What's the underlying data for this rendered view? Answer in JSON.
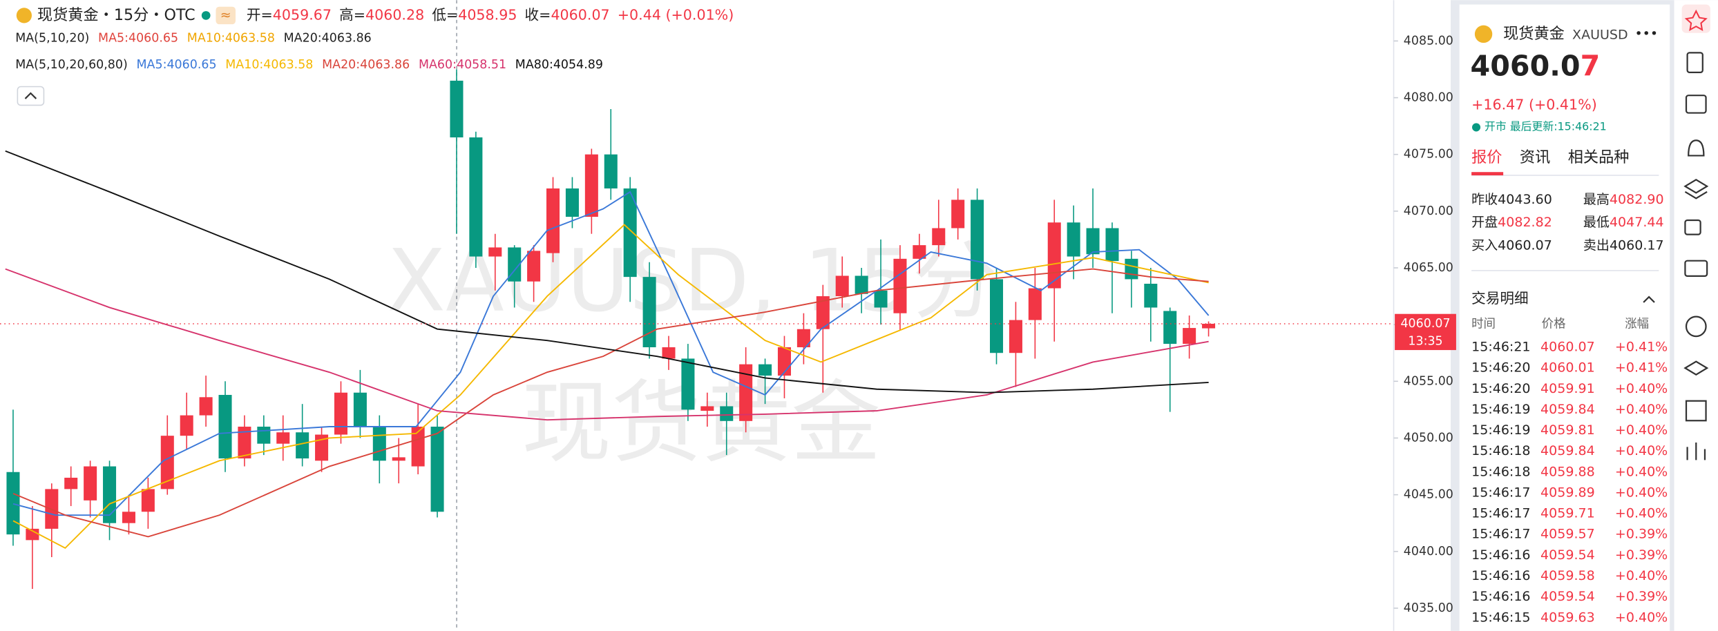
{
  "header": {
    "symbol": "现货黄金・15分・OTC",
    "ohlc": [
      {
        "label": "开=",
        "value": "4059.67"
      },
      {
        "label": "高=",
        "value": "4060.28"
      },
      {
        "label": "低=",
        "value": "4058.95"
      },
      {
        "label": "收=",
        "value": "4060.07"
      }
    ],
    "change": "+0.44 (+0.01%)",
    "ma_row": {
      "title": "MA(5,10,20)",
      "items": [
        {
          "text": "MA5:4060.65",
          "color": "#e0443d"
        },
        {
          "text": "MA10:4063.58",
          "color": "#f0a500"
        },
        {
          "text": "MA20:4063.86",
          "color": "#222222"
        }
      ]
    },
    "ma_row2_title": "MA(5,10,20,60,80)"
  },
  "chart_data": {
    "type": "candlestick",
    "up_color": "#f23645",
    "down_color": "#089981",
    "xlim": [
      -0.68,
      71.6
    ],
    "ylim": [
      4033,
      4088.6
    ],
    "yticks": [
      {
        "value": 4035,
        "label": "4035.00"
      },
      {
        "value": 4040,
        "label": "4040.00"
      },
      {
        "value": 4045,
        "label": "4045.00"
      },
      {
        "value": 4050,
        "label": "4050.00"
      },
      {
        "value": 4055,
        "label": "4055.00"
      },
      {
        "value": 4060,
        "label": "4060.00"
      },
      {
        "value": 4065,
        "label": "4065.00"
      },
      {
        "value": 4070,
        "label": "4070.00"
      },
      {
        "value": 4075,
        "label": "4075.00"
      },
      {
        "value": 4080,
        "label": "4080.00"
      },
      {
        "value": 4085,
        "label": "4085.00"
      }
    ],
    "open": [
      4047,
      4041,
      4042,
      4045.5,
      4044.5,
      4047.5,
      4042.5,
      4043.5,
      4045.5,
      4050.2,
      4052,
      4053.8,
      4048.2,
      4051,
      4049.5,
      4050.5,
      4048,
      4050.3,
      4054,
      4051,
      4048,
      4047.5,
      4051,
      4081.5,
      4076.5,
      4066,
      4066.8,
      4063.8,
      4066.3,
      4072,
      4069.5,
      4075,
      4072,
      4064.2,
      4057,
      4057,
      4052.4,
      4052.8,
      4051.5,
      4056.5,
      4055.5,
      4058,
      4059.6,
      4062.5,
      4064.3,
      4063,
      4061,
      4065.8,
      4067,
      4068.5,
      4071,
      4064,
      4057.5,
      4060.4,
      4063.2,
      4069,
      4068.5,
      4068.5,
      4065.8,
      4063.6,
      4061.2,
      4058.3,
      4059.67
    ],
    "high": [
      4052.5,
      4044,
      4046,
      4047.5,
      4048,
      4048,
      4045,
      4046.5,
      4052,
      4054,
      4055.5,
      4055,
      4052,
      4052,
      4052,
      4053,
      4051,
      4055,
      4056,
      4052,
      4050,
      4053,
      4052,
      4082.5,
      4077,
      4068,
      4067,
      4067,
      4073,
      4073,
      4075.5,
      4079,
      4073,
      4065.5,
      4059,
      4058.3,
      4054,
      4054,
      4058,
      4057,
      4059,
      4061,
      4063.5,
      4066,
      4065,
      4067.5,
      4067,
      4068,
      4071,
      4072,
      4072,
      4065,
      4062,
      4065,
      4071,
      4070.5,
      4072,
      4069,
      4066.5,
      4065,
      4061.5,
      4060.8,
      4060.28
    ],
    "low": [
      4040.5,
      4036.7,
      4039.5,
      4044,
      4043,
      4041,
      4041.5,
      4042,
      4045,
      4049,
      4051,
      4047,
      4047.5,
      4048.5,
      4048,
      4047.5,
      4047,
      4049.5,
      4050,
      4046,
      4046,
      4046.8,
      4043,
      4068,
      4065,
      4063,
      4061.5,
      4062,
      4065.5,
      4068.5,
      4068,
      4071,
      4062,
      4057,
      4056,
      4051.5,
      4051,
      4048.5,
      4050.5,
      4053,
      4053.5,
      4056.5,
      4054,
      4061.5,
      4061,
      4060,
      4059.5,
      4064.5,
      4066,
      4067.5,
      4063,
      4056.5,
      4054.5,
      4057,
      4058.5,
      4064,
      4065,
      4061,
      4061.5,
      4058.5,
      4052.3,
      4057,
      4058.95
    ],
    "close": [
      4041.5,
      4042,
      4045.5,
      4046.5,
      4047.5,
      4042.5,
      4043.5,
      4045.5,
      4050.2,
      4052,
      4053.6,
      4048.2,
      4051,
      4049.5,
      4050.5,
      4048.2,
      4050.3,
      4054,
      4051,
      4048,
      4048.3,
      4051,
      4043.5,
      4076.5,
      4066,
      4066.8,
      4063.8,
      4066.5,
      4072,
      4069.5,
      4075,
      4072,
      4064.2,
      4058,
      4058,
      4052.5,
      4052.8,
      4051.5,
      4056.5,
      4055.5,
      4058,
      4059.6,
      4062.5,
      4064.3,
      4062.7,
      4061.5,
      4065.8,
      4067,
      4068.5,
      4071,
      4064,
      4057.5,
      4060.4,
      4063.2,
      4069,
      4066,
      4066.2,
      4065.6,
      4064,
      4061.5,
      4058.3,
      4059.7,
      4060.07
    ],
    "series": [
      {
        "name": "MA5:4060.65",
        "color": "#3a78d8",
        "x": [
          0,
          2.2,
          5,
          7.8,
          10.7,
          16.4,
          20.9,
          23.2,
          24.9,
          27.7,
          30.6,
          32,
          34,
          36.3,
          39,
          41.9,
          44.8,
          47.6,
          50.5,
          53.3,
          56,
          58.4,
          60.4,
          62
        ],
        "values": [
          4044.2,
          4043.2,
          4043.2,
          4048,
          4050.4,
          4051,
          4051,
          4055.8,
          4062.5,
          4068.3,
          4070.2,
          4071.7,
          4064.4,
          4055.8,
          4053.8,
          4059.6,
          4063,
          4066.4,
          4065.4,
          4063,
          4066.4,
          4066.6,
          4064,
          4060.8
        ]
      },
      {
        "name": "MA10:4063.58",
        "color": "#f5b800",
        "x": [
          0,
          2.7,
          5,
          10.7,
          16.4,
          20.9,
          23.2,
          27.7,
          31.7,
          34.5,
          39,
          41.9,
          47.6,
          50.5,
          56,
          62
        ],
        "values": [
          4042.7,
          4040.3,
          4044.2,
          4048,
          4050,
          4050.4,
          4053.8,
          4062.5,
          4068.8,
          4064.4,
          4058.6,
          4056.7,
          4060.6,
          4064.4,
          4065.9,
          4063.7
        ]
      },
      {
        "name": "MA20:4063.86",
        "color": "#d9443a",
        "x": [
          0,
          2.7,
          7,
          10.7,
          16.4,
          22,
          24.9,
          27.7,
          30.6,
          33.4,
          39,
          44.8,
          50.5,
          56,
          59,
          62
        ],
        "values": [
          4045.1,
          4043.2,
          4041.3,
          4043.2,
          4047.5,
          4050.4,
          4053.8,
          4055.8,
          4057.2,
          4059.6,
          4061.1,
          4063,
          4064,
          4064.9,
          4064.2,
          4063.8
        ]
      },
      {
        "name": "MA60:4058.51",
        "color": "#d6336c",
        "x": [
          -0.4,
          5,
          10.7,
          16.4,
          22,
          27.7,
          33.4,
          39,
          44.8,
          50.5,
          56,
          62
        ],
        "values": [
          4064.9,
          4061.5,
          4058.6,
          4055.8,
          4052.4,
          4051.6,
          4051.9,
          4052.1,
          4052.4,
          4053.8,
          4056.7,
          4058.5
        ]
      },
      {
        "name": "MA80:4054.89",
        "color": "#111111",
        "x": [
          -0.4,
          5,
          10.7,
          16.4,
          22,
          27.7,
          33.4,
          39,
          44.8,
          50.5,
          56,
          62
        ],
        "values": [
          4075.3,
          4071.7,
          4067.8,
          4064,
          4059.6,
          4058.6,
          4057.2,
          4055.3,
          4054.3,
          4054,
          4054.3,
          4054.9
        ]
      }
    ],
    "last_price": {
      "value": 4060.07,
      "label": "4060.07"
    },
    "last_time": "13:35",
    "watermark": [
      "XAUUSD, 15分",
      "现货黄金"
    ]
  },
  "sidebar": {
    "name": "现货黄金",
    "code": "XAUUSD",
    "price_main": "4060.0",
    "price_last": "7",
    "change": "+16.47 (+0.41%)",
    "status": "● 开市 最后更新:15:46:21",
    "tabs": [
      "报价",
      "资讯",
      "相关品种"
    ],
    "stats": [
      [
        {
          "label": "昨收",
          "value": "4043.60",
          "color": "#222222"
        },
        {
          "label": "最高",
          "value": "4082.90",
          "color": "#f23645"
        }
      ],
      [
        {
          "label": "开盘",
          "value": "4082.82",
          "color": "#f23645"
        },
        {
          "label": "最低",
          "value": "4047.44",
          "color": "#f23645"
        }
      ],
      [
        {
          "label": "买入",
          "value": "4060.07",
          "color": "#222222"
        },
        {
          "label": "卖出",
          "value": "4060.17",
          "color": "#222222"
        }
      ]
    ],
    "trades_title": "交易明细",
    "trades_header": [
      "时间",
      "价格",
      "涨幅"
    ],
    "trades": [
      [
        "15:46:21",
        "4060.07",
        "+0.41%"
      ],
      [
        "15:46:20",
        "4060.01",
        "+0.41%"
      ],
      [
        "15:46:20",
        "4059.91",
        "+0.40%"
      ],
      [
        "15:46:19",
        "4059.84",
        "+0.40%"
      ],
      [
        "15:46:19",
        "4059.81",
        "+0.40%"
      ],
      [
        "15:46:18",
        "4059.84",
        "+0.40%"
      ],
      [
        "15:46:18",
        "4059.88",
        "+0.40%"
      ],
      [
        "15:46:17",
        "4059.89",
        "+0.40%"
      ],
      [
        "15:46:17",
        "4059.71",
        "+0.40%"
      ],
      [
        "15:46:17",
        "4059.57",
        "+0.39%"
      ],
      [
        "15:46:16",
        "4059.54",
        "+0.39%"
      ],
      [
        "15:46:16",
        "4059.58",
        "+0.40%"
      ],
      [
        "15:46:16",
        "4059.54",
        "+0.39%"
      ],
      [
        "15:46:15",
        "4059.63",
        "+0.40%"
      ]
    ]
  }
}
